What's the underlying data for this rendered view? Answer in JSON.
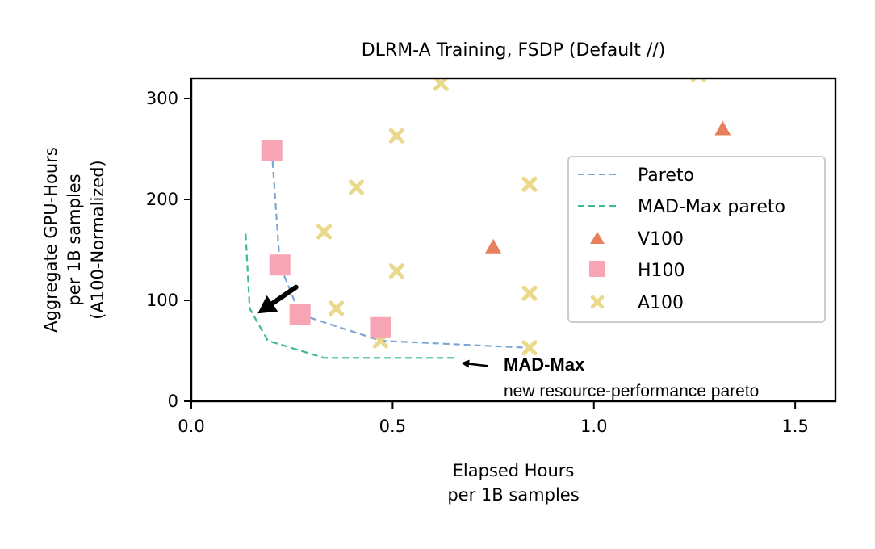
{
  "chart_data": {
    "type": "scatter",
    "title": "DLRM-A Training, FSDP (Default //)",
    "xlabel_lines": [
      "Elapsed Hours",
      "per 1B samples"
    ],
    "ylabel_lines": [
      "Aggregate GPU-Hours",
      "per 1B samples",
      "(A100-Normalized)"
    ],
    "xlim": [
      0,
      1.6
    ],
    "ylim": [
      0,
      320
    ],
    "xticks": [
      0.0,
      0.5,
      1.0,
      1.5
    ],
    "xtick_labels": [
      "0.0",
      "0.5",
      "1.0",
      "1.5"
    ],
    "yticks": [
      0,
      100,
      200,
      300
    ],
    "ytick_labels": [
      "0",
      "100",
      "200",
      "300"
    ],
    "legend_position": "center-right",
    "series": [
      {
        "name": "Pareto",
        "kind": "line",
        "style": "dashed",
        "color": "#7aa6d4",
        "points": [
          [
            0.2,
            248
          ],
          [
            0.22,
            135
          ],
          [
            0.27,
            86
          ],
          [
            0.47,
            60
          ],
          [
            0.84,
            53
          ]
        ]
      },
      {
        "name": "MAD-Max pareto",
        "kind": "line",
        "style": "dashed",
        "color": "#3dbb8e",
        "points": [
          [
            0.135,
            166
          ],
          [
            0.145,
            92
          ],
          [
            0.19,
            60
          ],
          [
            0.33,
            43
          ],
          [
            0.66,
            43
          ]
        ]
      },
      {
        "name": "V100",
        "kind": "scatter",
        "marker": "triangle",
        "color": "#e8805e",
        "points": [
          [
            0.75,
            153
          ],
          [
            1.32,
            270
          ]
        ]
      },
      {
        "name": "H100",
        "kind": "scatter",
        "marker": "square",
        "color": "#f7a5b5",
        "points": [
          [
            0.2,
            248
          ],
          [
            0.22,
            135
          ],
          [
            0.27,
            86
          ],
          [
            0.47,
            73
          ]
        ]
      },
      {
        "name": "A100",
        "kind": "scatter",
        "marker": "x",
        "color": "#ead98b",
        "points": [
          [
            0.62,
            315
          ],
          [
            1.26,
            324
          ],
          [
            0.51,
            263
          ],
          [
            0.84,
            215
          ],
          [
            0.41,
            212
          ],
          [
            0.33,
            168
          ],
          [
            0.51,
            129
          ],
          [
            0.84,
            107
          ],
          [
            0.36,
            92
          ],
          [
            0.47,
            60
          ],
          [
            0.84,
            53
          ]
        ]
      }
    ],
    "annotations": {
      "label_bold": "MAD-Max",
      "label_sub": "new resource-performance pareto",
      "arrow_big": {
        "from": [
          0.26,
          113
        ],
        "to": [
          0.165,
          87
        ]
      },
      "arrow_small": {
        "from": [
          0.735,
          35
        ],
        "to": [
          0.67,
          38
        ]
      }
    }
  }
}
